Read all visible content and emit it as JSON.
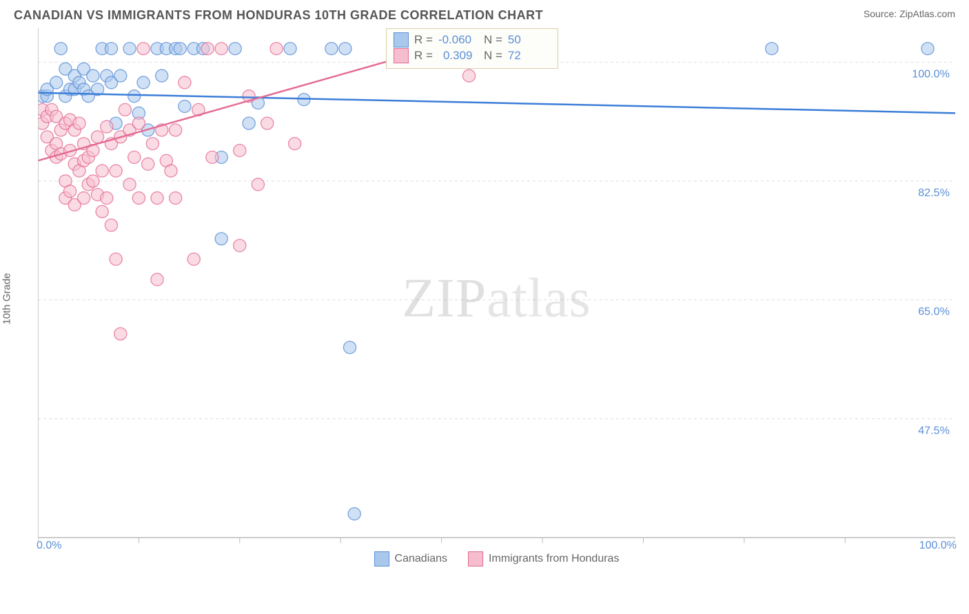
{
  "title": "CANADIAN VS IMMIGRANTS FROM HONDURAS 10TH GRADE CORRELATION CHART",
  "source_label": "Source: ",
  "source_name": "ZipAtlas.com",
  "ylabel": "10th Grade",
  "watermark": {
    "part1": "ZIP",
    "part2": "atlas"
  },
  "chart": {
    "type": "scatter",
    "xlim": [
      0,
      100
    ],
    "ylim": [
      30,
      105
    ],
    "x_axis_start_label": "0.0%",
    "x_axis_end_label": "100.0%",
    "x_ticks": [
      0,
      11,
      22,
      33,
      44,
      55,
      66,
      77,
      88,
      100
    ],
    "y_gridlines": [
      {
        "value": 47.5,
        "label": "47.5%"
      },
      {
        "value": 65.0,
        "label": "65.0%"
      },
      {
        "value": 82.5,
        "label": "82.5%"
      },
      {
        "value": 100.0,
        "label": "100.0%"
      }
    ],
    "background_color": "#ffffff",
    "grid_color": "#dddddd",
    "axis_color": "#bbbbbb",
    "marker_radius": 9,
    "series": [
      {
        "key": "canadians",
        "label": "Canadians",
        "fill": "#a9c8ec",
        "stroke": "#5a8fd6",
        "trend_color": "#3b7dd8",
        "R": "-0.060",
        "N": "50",
        "trend": {
          "x1": 0,
          "y1": 95.5,
          "x2": 100,
          "y2": 92.5
        },
        "points": [
          [
            0.5,
            95
          ],
          [
            1,
            95
          ],
          [
            1,
            96
          ],
          [
            2,
            97
          ],
          [
            2.5,
            102
          ],
          [
            3,
            95
          ],
          [
            3,
            99
          ],
          [
            3.5,
            96
          ],
          [
            4,
            98
          ],
          [
            4,
            96
          ],
          [
            4.5,
            97
          ],
          [
            5,
            99
          ],
          [
            5,
            96
          ],
          [
            5.5,
            95
          ],
          [
            6,
            98
          ],
          [
            6.5,
            96
          ],
          [
            7,
            102
          ],
          [
            7.5,
            98
          ],
          [
            8,
            102
          ],
          [
            8,
            97
          ],
          [
            8.5,
            91
          ],
          [
            9,
            98
          ],
          [
            10,
            102
          ],
          [
            10.5,
            95
          ],
          [
            11,
            92.5
          ],
          [
            11.5,
            97
          ],
          [
            12,
            90
          ],
          [
            13,
            102
          ],
          [
            13.5,
            98
          ],
          [
            14,
            102
          ],
          [
            15,
            102
          ],
          [
            15.5,
            102
          ],
          [
            16,
            93.5
          ],
          [
            17,
            102
          ],
          [
            18,
            102
          ],
          [
            20,
            74
          ],
          [
            20,
            86
          ],
          [
            21.5,
            102
          ],
          [
            23,
            91
          ],
          [
            24,
            94
          ],
          [
            27.5,
            102
          ],
          [
            29,
            94.5
          ],
          [
            32,
            102
          ],
          [
            33.5,
            102
          ],
          [
            34,
            58
          ],
          [
            34.5,
            33.5
          ],
          [
            39,
            102
          ],
          [
            44,
            102
          ],
          [
            80,
            102
          ],
          [
            97,
            102
          ]
        ]
      },
      {
        "key": "honduras",
        "label": "Immigrants from Honduras",
        "fill": "#f5bdce",
        "stroke": "#e46b94",
        "trend_color": "#e46b94",
        "R": "0.309",
        "N": "72",
        "trend": {
          "x1": 0,
          "y1": 85.5,
          "x2": 43,
          "y2": 102
        },
        "points": [
          [
            0.5,
            91
          ],
          [
            0.5,
            93
          ],
          [
            1,
            92
          ],
          [
            1,
            89
          ],
          [
            1.5,
            93
          ],
          [
            1.5,
            87
          ],
          [
            2,
            92
          ],
          [
            2,
            88
          ],
          [
            2,
            86
          ],
          [
            2.5,
            90
          ],
          [
            2.5,
            86.5
          ],
          [
            3,
            91
          ],
          [
            3,
            82.5
          ],
          [
            3,
            80
          ],
          [
            3.5,
            91.5
          ],
          [
            3.5,
            87
          ],
          [
            3.5,
            81
          ],
          [
            4,
            90
          ],
          [
            4,
            85
          ],
          [
            4,
            79
          ],
          [
            4.5,
            91
          ],
          [
            4.5,
            84
          ],
          [
            5,
            88
          ],
          [
            5,
            85.5
          ],
          [
            5,
            80
          ],
          [
            5.5,
            86
          ],
          [
            5.5,
            82
          ],
          [
            6,
            87
          ],
          [
            6,
            82.5
          ],
          [
            6.5,
            89
          ],
          [
            6.5,
            80.5
          ],
          [
            7,
            84
          ],
          [
            7,
            78
          ],
          [
            7.5,
            90.5
          ],
          [
            7.5,
            80
          ],
          [
            8,
            88
          ],
          [
            8,
            76
          ],
          [
            8.5,
            84
          ],
          [
            8.5,
            71
          ],
          [
            9,
            89
          ],
          [
            9,
            60
          ],
          [
            9.5,
            93
          ],
          [
            10,
            90
          ],
          [
            10,
            82
          ],
          [
            10.5,
            86
          ],
          [
            11,
            91
          ],
          [
            11,
            80
          ],
          [
            11.5,
            102
          ],
          [
            12,
            85
          ],
          [
            12.5,
            88
          ],
          [
            13,
            68
          ],
          [
            13,
            80
          ],
          [
            13.5,
            90
          ],
          [
            14,
            85.5
          ],
          [
            14.5,
            84
          ],
          [
            15,
            90
          ],
          [
            15,
            80
          ],
          [
            16,
            97
          ],
          [
            17,
            71
          ],
          [
            17.5,
            93
          ],
          [
            18.5,
            102
          ],
          [
            19,
            86
          ],
          [
            20,
            102
          ],
          [
            22,
            87
          ],
          [
            22,
            73
          ],
          [
            23,
            95
          ],
          [
            24,
            82
          ],
          [
            25,
            91
          ],
          [
            26,
            102
          ],
          [
            28,
            88
          ],
          [
            42,
            102
          ],
          [
            47,
            98
          ]
        ]
      }
    ]
  },
  "stat_box": {
    "R_label": "R =",
    "N_label": "N ="
  }
}
